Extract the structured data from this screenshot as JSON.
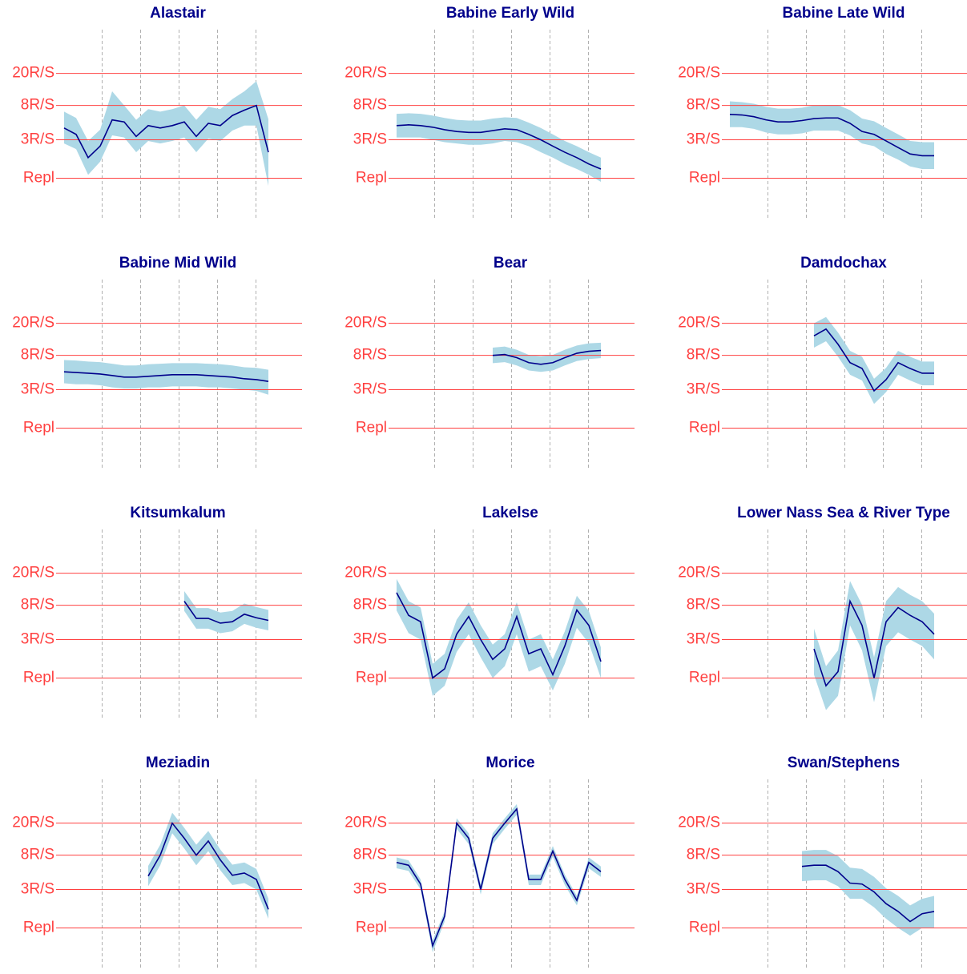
{
  "chart_data": [
    {
      "type": "line",
      "title": "Alastair",
      "log_scale": true,
      "ylim": [
        0.3,
        70
      ],
      "yticks": [
        {
          "value": 1,
          "label": "Repl"
        },
        {
          "value": 3,
          "label": "3R/S"
        },
        {
          "value": 8,
          "label": "8R/S"
        },
        {
          "value": 20,
          "label": "20R/S"
        }
      ],
      "color": "#00008b",
      "band_color": "#add8e6",
      "grid_color": "#ff4040",
      "values": [
        4.2,
        3.5,
        1.8,
        2.5,
        5.3,
        5,
        3.3,
        4.5,
        4.2,
        4.5,
        5,
        3.3,
        4.8,
        4.5,
        6,
        7,
        8,
        2.1
      ],
      "lower": [
        2.7,
        2.3,
        1.1,
        1.6,
        3.4,
        3.2,
        2.1,
        2.9,
        2.7,
        2.9,
        3.2,
        2.1,
        3.1,
        2.9,
        3.9,
        4.5,
        4.5,
        0.8
      ],
      "upper": [
        6.7,
        5.6,
        2.9,
        4,
        12,
        8,
        5.3,
        7.2,
        6.7,
        7.2,
        8,
        5.3,
        7.7,
        7.2,
        9.6,
        12,
        16,
        5.4
      ]
    },
    {
      "type": "line",
      "title": "Babine Early Wild",
      "log_scale": true,
      "ylim": [
        0.3,
        70
      ],
      "yticks": [
        {
          "value": 1,
          "label": "Repl"
        },
        {
          "value": 3,
          "label": "3R/S"
        },
        {
          "value": 8,
          "label": "8R/S"
        },
        {
          "value": 20,
          "label": "20R/S"
        }
      ],
      "color": "#00008b",
      "band_color": "#add8e6",
      "grid_color": "#ff4040",
      "values": [
        4.5,
        4.6,
        4.5,
        4.3,
        4,
        3.8,
        3.7,
        3.7,
        3.9,
        4.1,
        4,
        3.5,
        3,
        2.5,
        2.1,
        1.8,
        1.5,
        1.3
      ],
      "lower": [
        3.2,
        3.2,
        3.2,
        3,
        2.8,
        2.7,
        2.6,
        2.6,
        2.7,
        2.9,
        2.8,
        2.5,
        2.1,
        1.8,
        1.5,
        1.3,
        1.1,
        0.9
      ],
      "upper": [
        6.3,
        6.4,
        6.3,
        6,
        5.6,
        5.3,
        5.2,
        5.2,
        5.5,
        5.7,
        5.6,
        4.9,
        4.2,
        3.5,
        2.9,
        2.5,
        2.1,
        1.8
      ]
    },
    {
      "type": "line",
      "title": "Babine Late Wild",
      "log_scale": true,
      "ylim": [
        0.3,
        70
      ],
      "yticks": [
        {
          "value": 1,
          "label": "Repl"
        },
        {
          "value": 3,
          "label": "3R/S"
        },
        {
          "value": 8,
          "label": "8R/S"
        },
        {
          "value": 20,
          "label": "20R/S"
        }
      ],
      "color": "#00008b",
      "band_color": "#add8e6",
      "grid_color": "#ff4040",
      "values": [
        6.2,
        6.1,
        5.8,
        5.3,
        5,
        5,
        5.2,
        5.5,
        5.6,
        5.6,
        4.8,
        3.8,
        3.5,
        2.9,
        2.4,
        2,
        1.9,
        1.9
      ],
      "lower": [
        4.3,
        4.3,
        4.1,
        3.7,
        3.5,
        3.5,
        3.6,
        3.9,
        3.9,
        3.9,
        3.4,
        2.7,
        2.5,
        2,
        1.7,
        1.4,
        1.3,
        1.3
      ],
      "upper": [
        9,
        8.8,
        8.4,
        7.7,
        7.3,
        7.3,
        7.5,
        8,
        8.1,
        8.1,
        7,
        5.5,
        5.1,
        4.2,
        3.5,
        2.9,
        2.8,
        2.8
      ]
    },
    {
      "type": "line",
      "title": "Babine Mid Wild",
      "log_scale": true,
      "ylim": [
        0.3,
        70
      ],
      "yticks": [
        {
          "value": 1,
          "label": "Repl"
        },
        {
          "value": 3,
          "label": "3R/S"
        },
        {
          "value": 8,
          "label": "8R/S"
        },
        {
          "value": 20,
          "label": "20R/S"
        }
      ],
      "color": "#00008b",
      "band_color": "#add8e6",
      "grid_color": "#ff4040",
      "values": [
        5,
        4.9,
        4.8,
        4.7,
        4.5,
        4.3,
        4.3,
        4.4,
        4.5,
        4.6,
        4.6,
        4.6,
        4.5,
        4.4,
        4.3,
        4.1,
        4,
        3.8
      ],
      "lower": [
        3.6,
        3.5,
        3.5,
        3.4,
        3.2,
        3.1,
        3.1,
        3.2,
        3.2,
        3.3,
        3.3,
        3.3,
        3.2,
        3.2,
        3.1,
        3,
        2.9,
        2.6
      ],
      "upper": [
        7,
        6.9,
        6.7,
        6.6,
        6.3,
        6,
        6,
        6.2,
        6.3,
        6.4,
        6.4,
        6.4,
        6.3,
        6.2,
        6,
        5.7,
        5.6,
        5.3
      ]
    },
    {
      "type": "line",
      "title": "Bear",
      "log_scale": true,
      "ylim": [
        0.3,
        70
      ],
      "yticks": [
        {
          "value": 1,
          "label": "Repl"
        },
        {
          "value": 3,
          "label": "3R/S"
        },
        {
          "value": 8,
          "label": "8R/S"
        },
        {
          "value": 20,
          "label": "20R/S"
        }
      ],
      "color": "#00008b",
      "band_color": "#add8e6",
      "grid_color": "#ff4040",
      "values": [
        null,
        null,
        null,
        null,
        null,
        null,
        null,
        null,
        8,
        8.2,
        7.5,
        6.5,
        6.2,
        6.5,
        7.5,
        8.5,
        9,
        9.2
      ],
      "lower": [
        null,
        null,
        null,
        null,
        null,
        null,
        null,
        null,
        6.4,
        6.6,
        6,
        5.2,
        5,
        5.2,
        6,
        6.8,
        7.2,
        7.4
      ],
      "upper": [
        null,
        null,
        null,
        null,
        null,
        null,
        null,
        null,
        10,
        10.3,
        9.4,
        8.1,
        7.8,
        8.1,
        9.4,
        10.6,
        11.3,
        11.5
      ]
    },
    {
      "type": "line",
      "title": "Damdochax",
      "log_scale": true,
      "ylim": [
        0.3,
        70
      ],
      "yticks": [
        {
          "value": 1,
          "label": "Repl"
        },
        {
          "value": 3,
          "label": "3R/S"
        },
        {
          "value": 8,
          "label": "8R/S"
        },
        {
          "value": 20,
          "label": "20R/S"
        }
      ],
      "color": "#00008b",
      "band_color": "#add8e6",
      "grid_color": "#ff4040",
      "values": [
        null,
        null,
        null,
        null,
        null,
        null,
        null,
        14,
        17,
        11,
        6.5,
        5.5,
        2.9,
        4,
        6.5,
        5.5,
        4.8,
        4.8
      ],
      "lower": [
        null,
        null,
        null,
        null,
        null,
        null,
        null,
        10,
        12,
        7.7,
        4.6,
        3.9,
        2,
        2.8,
        4.6,
        3.9,
        3.4,
        3.4
      ],
      "upper": [
        null,
        null,
        null,
        null,
        null,
        null,
        null,
        20,
        24,
        15.4,
        9.1,
        7.7,
        4.1,
        5.6,
        9.1,
        7.7,
        6.7,
        6.7
      ]
    },
    {
      "type": "line",
      "title": "Kitsumkalum",
      "log_scale": true,
      "ylim": [
        0.3,
        70
      ],
      "yticks": [
        {
          "value": 1,
          "label": "Repl"
        },
        {
          "value": 3,
          "label": "3R/S"
        },
        {
          "value": 8,
          "label": "8R/S"
        },
        {
          "value": 20,
          "label": "20R/S"
        }
      ],
      "color": "#00008b",
      "band_color": "#add8e6",
      "grid_color": "#ff4040",
      "values": [
        null,
        null,
        null,
        null,
        null,
        null,
        null,
        null,
        null,
        null,
        9,
        5.5,
        5.5,
        4.8,
        5,
        6.2,
        5.6,
        5.2
      ],
      "lower": [
        null,
        null,
        null,
        null,
        null,
        null,
        null,
        null,
        null,
        null,
        6.8,
        4.1,
        4.1,
        3.6,
        3.8,
        4.7,
        4.2,
        3.9
      ],
      "upper": [
        null,
        null,
        null,
        null,
        null,
        null,
        null,
        null,
        null,
        null,
        12,
        7.4,
        7.4,
        6.5,
        6.8,
        8.4,
        7.6,
        7
      ]
    },
    {
      "type": "line",
      "title": "Lakelse",
      "log_scale": true,
      "ylim": [
        0.3,
        70
      ],
      "yticks": [
        {
          "value": 1,
          "label": "Repl"
        },
        {
          "value": 3,
          "label": "3R/S"
        },
        {
          "value": 8,
          "label": "8R/S"
        },
        {
          "value": 20,
          "label": "20R/S"
        }
      ],
      "color": "#00008b",
      "band_color": "#add8e6",
      "grid_color": "#ff4040",
      "values": [
        11.5,
        6,
        5,
        1,
        1.3,
        3.5,
        5.8,
        3,
        1.7,
        2.3,
        5.8,
        2,
        2.3,
        1.1,
        2.5,
        7,
        4.5,
        1.6
      ],
      "lower": [
        6.9,
        3.6,
        3,
        0.6,
        0.8,
        2.1,
        3.5,
        1.8,
        1,
        1.4,
        3.5,
        1.2,
        1.4,
        0.7,
        1.5,
        4.2,
        2.7,
        1
      ],
      "upper": [
        17,
        9,
        7.5,
        1.5,
        2,
        5.3,
        8.7,
        4.5,
        2.6,
        3.5,
        8.7,
        3,
        3.5,
        1.7,
        3.8,
        10.5,
        6.8,
        2.4
      ]
    },
    {
      "type": "line",
      "title": "Lower Nass Sea & River Type",
      "log_scale": true,
      "ylim": [
        0.3,
        70
      ],
      "yticks": [
        {
          "value": 1,
          "label": "Repl"
        },
        {
          "value": 3,
          "label": "3R/S"
        },
        {
          "value": 8,
          "label": "8R/S"
        },
        {
          "value": 20,
          "label": "20R/S"
        }
      ],
      "color": "#00008b",
      "band_color": "#add8e6",
      "grid_color": "#ff4040",
      "values": [
        null,
        null,
        null,
        null,
        null,
        null,
        null,
        2.3,
        0.8,
        1.2,
        9,
        4.5,
        1,
        5,
        7.5,
        6,
        5,
        3.5
      ],
      "lower": [
        null,
        null,
        null,
        null,
        null,
        null,
        null,
        1.1,
        0.4,
        0.6,
        4.5,
        2.2,
        0.5,
        2.5,
        3.7,
        3,
        2.5,
        1.7
      ],
      "upper": [
        null,
        null,
        null,
        null,
        null,
        null,
        null,
        4.1,
        1.4,
        2.2,
        16,
        8.1,
        1.8,
        9,
        13.5,
        10.8,
        9,
        6.3
      ]
    },
    {
      "type": "line",
      "title": "Meziadin",
      "log_scale": true,
      "ylim": [
        0.3,
        70
      ],
      "yticks": [
        {
          "value": 1,
          "label": "Repl"
        },
        {
          "value": 3,
          "label": "3R/S"
        },
        {
          "value": 8,
          "label": "8R/S"
        },
        {
          "value": 20,
          "label": "20R/S"
        }
      ],
      "color": "#00008b",
      "band_color": "#add8e6",
      "grid_color": "#ff4040",
      "values": [
        null,
        null,
        null,
        null,
        null,
        null,
        null,
        4.4,
        8,
        20,
        13,
        8,
        12,
        7,
        4.5,
        4.8,
        4,
        1.7
      ],
      "lower": [
        null,
        null,
        null,
        null,
        null,
        null,
        null,
        3.3,
        6,
        15,
        9.7,
        6,
        9,
        5.2,
        3.4,
        3.6,
        3,
        1.3
      ],
      "upper": [
        null,
        null,
        null,
        null,
        null,
        null,
        null,
        5.9,
        10.8,
        27,
        17.5,
        10.8,
        16,
        9.4,
        6.1,
        6.5,
        5.4,
        2.3
      ]
    },
    {
      "type": "line",
      "title": "Morice",
      "log_scale": true,
      "ylim": [
        0.3,
        70
      ],
      "yticks": [
        {
          "value": 1,
          "label": "Repl"
        },
        {
          "value": 3,
          "label": "3R/S"
        },
        {
          "value": 8,
          "label": "8R/S"
        },
        {
          "value": 20,
          "label": "20R/S"
        }
      ],
      "color": "#00008b",
      "band_color": "#add8e6",
      "grid_color": "#ff4040",
      "values": [
        6.5,
        6,
        3.5,
        0.6,
        1.4,
        20,
        13,
        3,
        13,
        20,
        30,
        4,
        4,
        9,
        4,
        2.2,
        6.5,
        5
      ],
      "lower": [
        5.5,
        5.1,
        3,
        0.5,
        1.2,
        17,
        11,
        2.6,
        11,
        17,
        25.5,
        3.4,
        3.4,
        7.7,
        3.4,
        1.9,
        5.5,
        4.3
      ],
      "upper": [
        7.5,
        6.9,
        4,
        0.7,
        1.6,
        23,
        15,
        3.5,
        15,
        23,
        34.5,
        4.6,
        4.6,
        10.4,
        4.6,
        2.5,
        7.5,
        5.8
      ]
    },
    {
      "type": "line",
      "title": "Swan/Stephens",
      "log_scale": true,
      "ylim": [
        0.3,
        70
      ],
      "yticks": [
        {
          "value": 1,
          "label": "Repl"
        },
        {
          "value": 3,
          "label": "3R/S"
        },
        {
          "value": 8,
          "label": "8R/S"
        },
        {
          "value": 20,
          "label": "20R/S"
        }
      ],
      "color": "#00008b",
      "band_color": "#add8e6",
      "grid_color": "#ff4040",
      "values": [
        null,
        null,
        null,
        null,
        null,
        null,
        5.8,
        6,
        6,
        5,
        3.6,
        3.5,
        2.8,
        2,
        1.6,
        1.2,
        1.5,
        1.6
      ],
      "lower": [
        null,
        null,
        null,
        null,
        null,
        null,
        3.8,
        3.9,
        3.9,
        3.3,
        2.3,
        2.3,
        1.8,
        1.3,
        1,
        0.8,
        1,
        1
      ],
      "upper": [
        null,
        null,
        null,
        null,
        null,
        null,
        9,
        9.3,
        9.3,
        7.8,
        5.6,
        5.4,
        4.3,
        3.1,
        2.5,
        1.9,
        2.3,
        2.5
      ]
    }
  ]
}
